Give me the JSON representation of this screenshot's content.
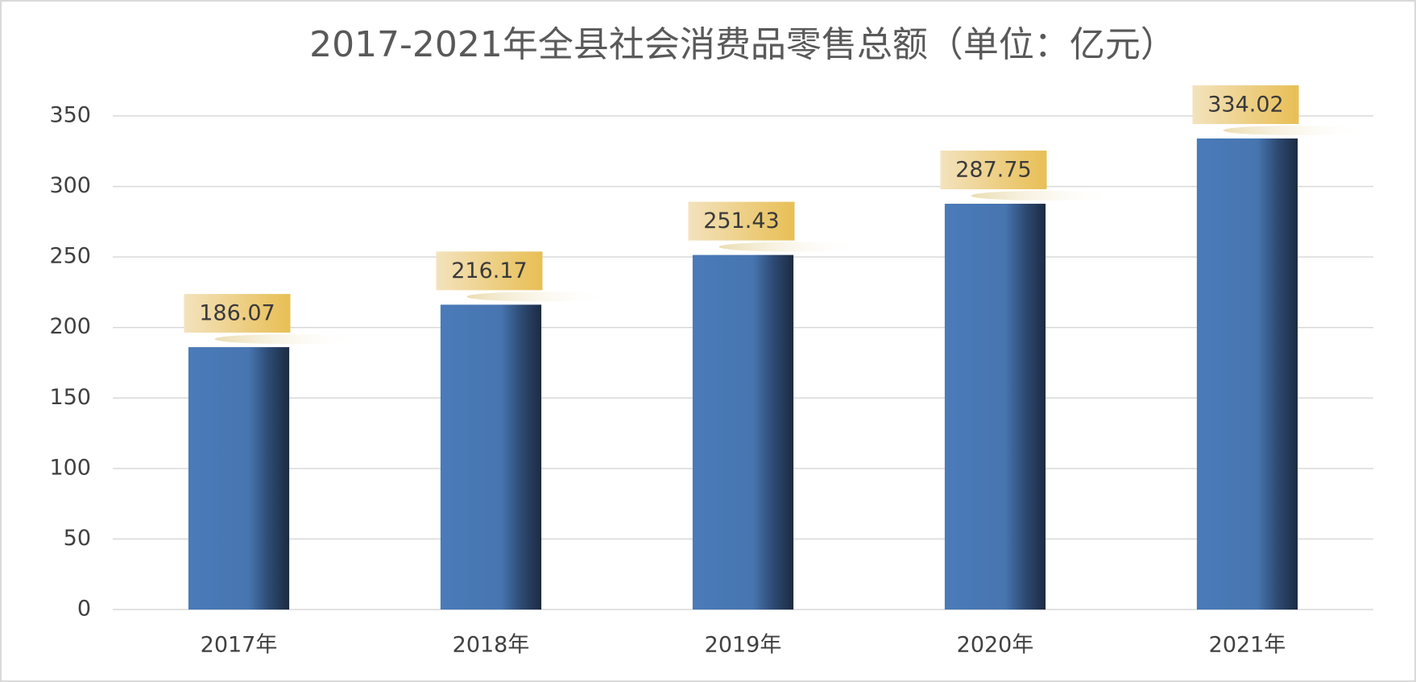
{
  "chart_data": {
    "type": "bar",
    "title": "2017-2021年全县社会消费品零售总额（单位：亿元）",
    "categories": [
      "2017年",
      "2018年",
      "2019年",
      "2020年",
      "2021年"
    ],
    "values": [
      186.07,
      216.17,
      251.43,
      287.75,
      334.02
    ],
    "color": "#4a7bb9",
    "ylim": [
      0,
      350
    ],
    "yticks": [
      0,
      50,
      100,
      150,
      200,
      250,
      300,
      350
    ],
    "grid": true
  }
}
